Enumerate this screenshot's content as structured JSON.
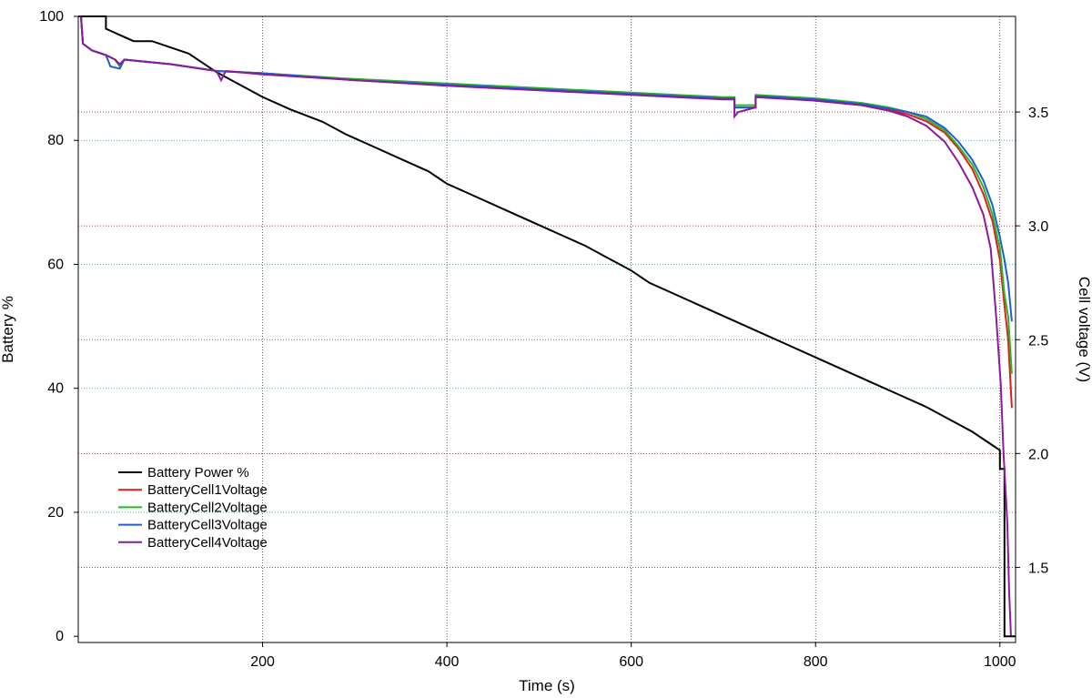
{
  "chart_data": {
    "type": "line",
    "title": "",
    "xlabel": "Time (s)",
    "ylabel_left": "Battery %",
    "ylabel_right": "Cell voltage (V)",
    "xlim": [
      0,
      1017
    ],
    "ylim_left": [
      -1,
      100
    ],
    "ylim_right": [
      1.17,
      3.92
    ],
    "x_ticks": [
      200,
      400,
      600,
      800,
      1000
    ],
    "y_left_ticks": [
      0,
      20,
      40,
      60,
      80,
      100
    ],
    "y_right_ticks": [
      1.5,
      2.0,
      2.5,
      3.0,
      3.5
    ],
    "y_right_tick_labels": [
      "1.5",
      "2.0",
      "2.5",
      "3.0",
      "3.5"
    ],
    "grid": true,
    "legend_position": "lower-left",
    "series": [
      {
        "name": "Battery Power %",
        "axis": "left",
        "color": "#000000",
        "points": [
          [
            0,
            100
          ],
          [
            30,
            100
          ],
          [
            30,
            98
          ],
          [
            45,
            97
          ],
          [
            60,
            96
          ],
          [
            80,
            96
          ],
          [
            100,
            95
          ],
          [
            120,
            94
          ],
          [
            150,
            91
          ],
          [
            175,
            89
          ],
          [
            200,
            87
          ],
          [
            230,
            85
          ],
          [
            265,
            83
          ],
          [
            290,
            81
          ],
          [
            320,
            79
          ],
          [
            350,
            77
          ],
          [
            380,
            75
          ],
          [
            400,
            73
          ],
          [
            430,
            71
          ],
          [
            460,
            69
          ],
          [
            490,
            67
          ],
          [
            520,
            65
          ],
          [
            550,
            63
          ],
          [
            575,
            61
          ],
          [
            600,
            59
          ],
          [
            620,
            57
          ],
          [
            650,
            55
          ],
          [
            680,
            53
          ],
          [
            710,
            51
          ],
          [
            740,
            49
          ],
          [
            770,
            47
          ],
          [
            800,
            45
          ],
          [
            830,
            43
          ],
          [
            860,
            41
          ],
          [
            890,
            39
          ],
          [
            920,
            37
          ],
          [
            945,
            35
          ],
          [
            970,
            33
          ],
          [
            990,
            31
          ],
          [
            1000,
            30
          ],
          [
            1000,
            27
          ],
          [
            1005,
            27
          ],
          [
            1005,
            0
          ],
          [
            1017,
            0
          ]
        ]
      },
      {
        "name": "BatteryCell1Voltage",
        "axis": "right",
        "color": "#e41a1c",
        "points": [
          [
            0,
            3.92
          ],
          [
            3,
            3.92
          ],
          [
            5,
            3.8
          ],
          [
            15,
            3.77
          ],
          [
            30,
            3.75
          ],
          [
            40,
            3.73
          ],
          [
            45,
            3.7
          ],
          [
            50,
            3.73
          ],
          [
            100,
            3.71
          ],
          [
            150,
            3.68
          ],
          [
            200,
            3.67
          ],
          [
            300,
            3.64
          ],
          [
            400,
            3.62
          ],
          [
            500,
            3.6
          ],
          [
            600,
            3.58
          ],
          [
            700,
            3.56
          ],
          [
            712,
            3.56
          ],
          [
            712,
            3.52
          ],
          [
            735,
            3.52
          ],
          [
            735,
            3.57
          ],
          [
            800,
            3.55
          ],
          [
            850,
            3.53
          ],
          [
            880,
            3.51
          ],
          [
            900,
            3.49
          ],
          [
            920,
            3.46
          ],
          [
            940,
            3.41
          ],
          [
            955,
            3.34
          ],
          [
            970,
            3.25
          ],
          [
            982,
            3.14
          ],
          [
            992,
            3.02
          ],
          [
            1000,
            2.85
          ],
          [
            1005,
            2.65
          ],
          [
            1009,
            2.5
          ],
          [
            1013,
            2.2
          ]
        ]
      },
      {
        "name": "BatteryCell2Voltage",
        "axis": "right",
        "color": "#22bb22",
        "points": [
          [
            0,
            3.92
          ],
          [
            3,
            3.92
          ],
          [
            5,
            3.8
          ],
          [
            15,
            3.77
          ],
          [
            30,
            3.75
          ],
          [
            40,
            3.73
          ],
          [
            45,
            3.7
          ],
          [
            50,
            3.73
          ],
          [
            100,
            3.71
          ],
          [
            150,
            3.68
          ],
          [
            200,
            3.67
          ],
          [
            300,
            3.645
          ],
          [
            400,
            3.625
          ],
          [
            500,
            3.605
          ],
          [
            600,
            3.585
          ],
          [
            700,
            3.565
          ],
          [
            712,
            3.565
          ],
          [
            712,
            3.53
          ],
          [
            735,
            3.53
          ],
          [
            735,
            3.575
          ],
          [
            800,
            3.56
          ],
          [
            850,
            3.54
          ],
          [
            880,
            3.52
          ],
          [
            900,
            3.5
          ],
          [
            920,
            3.47
          ],
          [
            940,
            3.42
          ],
          [
            955,
            3.35
          ],
          [
            970,
            3.27
          ],
          [
            982,
            3.17
          ],
          [
            992,
            3.05
          ],
          [
            1000,
            2.9
          ],
          [
            1005,
            2.7
          ],
          [
            1009,
            2.6
          ],
          [
            1013,
            2.35
          ]
        ]
      },
      {
        "name": "BatteryCell3Voltage",
        "axis": "right",
        "color": "#1f5fcf",
        "points": [
          [
            0,
            3.92
          ],
          [
            3,
            3.92
          ],
          [
            5,
            3.8
          ],
          [
            15,
            3.77
          ],
          [
            30,
            3.75
          ],
          [
            35,
            3.7
          ],
          [
            45,
            3.69
          ],
          [
            50,
            3.73
          ],
          [
            100,
            3.71
          ],
          [
            150,
            3.68
          ],
          [
            200,
            3.67
          ],
          [
            300,
            3.64
          ],
          [
            400,
            3.62
          ],
          [
            500,
            3.6
          ],
          [
            600,
            3.58
          ],
          [
            700,
            3.56
          ],
          [
            712,
            3.56
          ],
          [
            712,
            3.52
          ],
          [
            735,
            3.52
          ],
          [
            735,
            3.57
          ],
          [
            800,
            3.555
          ],
          [
            850,
            3.535
          ],
          [
            880,
            3.515
          ],
          [
            900,
            3.5
          ],
          [
            920,
            3.48
          ],
          [
            940,
            3.43
          ],
          [
            955,
            3.37
          ],
          [
            970,
            3.29
          ],
          [
            982,
            3.2
          ],
          [
            992,
            3.09
          ],
          [
            1000,
            2.95
          ],
          [
            1005,
            2.85
          ],
          [
            1009,
            2.75
          ],
          [
            1013,
            2.58
          ]
        ]
      },
      {
        "name": "BatteryCell4Voltage",
        "axis": "right",
        "color": "#8b1a9c",
        "points": [
          [
            0,
            3.92
          ],
          [
            3,
            3.92
          ],
          [
            5,
            3.8
          ],
          [
            15,
            3.77
          ],
          [
            30,
            3.75
          ],
          [
            40,
            3.73
          ],
          [
            45,
            3.71
          ],
          [
            50,
            3.73
          ],
          [
            100,
            3.71
          ],
          [
            150,
            3.68
          ],
          [
            155,
            3.64
          ],
          [
            160,
            3.68
          ],
          [
            200,
            3.665
          ],
          [
            300,
            3.64
          ],
          [
            400,
            3.615
          ],
          [
            500,
            3.595
          ],
          [
            600,
            3.575
          ],
          [
            700,
            3.555
          ],
          [
            712,
            3.555
          ],
          [
            712,
            3.48
          ],
          [
            716,
            3.5
          ],
          [
            735,
            3.52
          ],
          [
            735,
            3.565
          ],
          [
            800,
            3.55
          ],
          [
            850,
            3.53
          ],
          [
            880,
            3.505
          ],
          [
            900,
            3.48
          ],
          [
            920,
            3.44
          ],
          [
            940,
            3.37
          ],
          [
            955,
            3.28
          ],
          [
            970,
            3.17
          ],
          [
            982,
            3.05
          ],
          [
            990,
            2.9
          ],
          [
            996,
            2.6
          ],
          [
            1001,
            2.3
          ],
          [
            1004,
            2.0
          ],
          [
            1008,
            1.7
          ],
          [
            1010,
            1.4
          ],
          [
            1012,
            1.2
          ]
        ]
      }
    ]
  }
}
